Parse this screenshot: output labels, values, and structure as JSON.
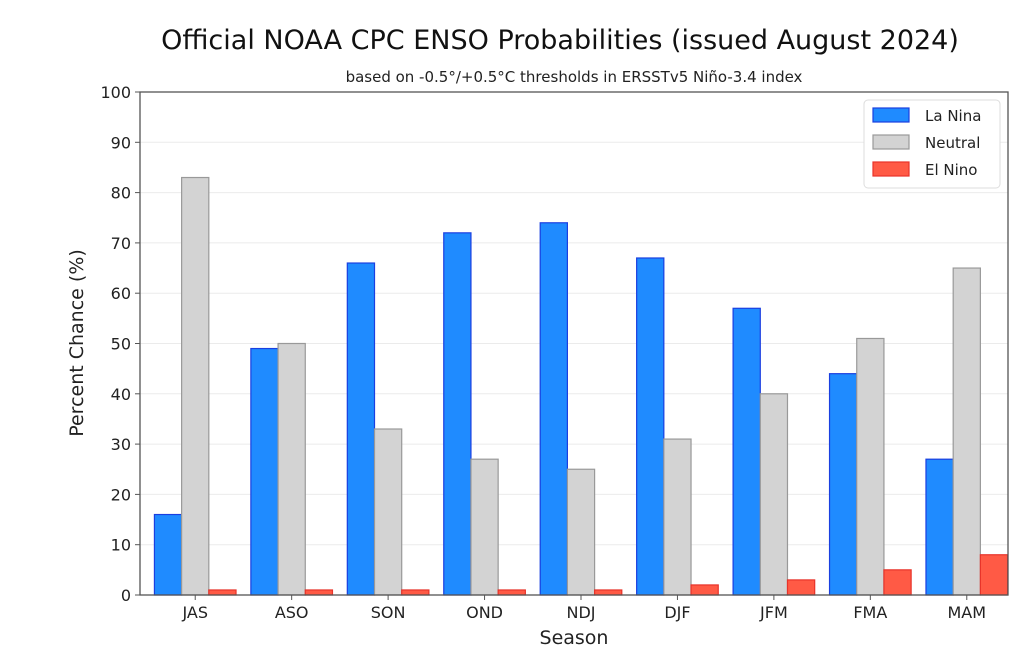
{
  "chart_data": {
    "type": "bar",
    "title": "Official NOAA CPC ENSO Probabilities (issued August 2024)",
    "subtitle": "based on -0.5°/+0.5°C thresholds in ERSSTv5 Niño-3.4 index",
    "xlabel": "Season",
    "ylabel": "Percent Chance (%)",
    "ylim": [
      0,
      100
    ],
    "yticks": [
      0,
      10,
      20,
      30,
      40,
      50,
      60,
      70,
      80,
      90,
      100
    ],
    "grid": true,
    "legend_position": "top-right",
    "categories": [
      "JAS",
      "ASO",
      "SON",
      "OND",
      "NDJ",
      "DJF",
      "JFM",
      "FMA",
      "MAM"
    ],
    "series": [
      {
        "name": "La Nina",
        "color": "#1f8bff",
        "edge": "#1a3fe0",
        "values": [
          16,
          49,
          66,
          72,
          74,
          67,
          57,
          44,
          27
        ]
      },
      {
        "name": "Neutral",
        "color": "#d3d3d3",
        "edge": "#999999",
        "values": [
          83,
          50,
          33,
          27,
          25,
          31,
          40,
          51,
          65
        ]
      },
      {
        "name": "El Nino",
        "color": "#ff5a45",
        "edge": "#e8332a",
        "values": [
          1,
          1,
          1,
          1,
          1,
          2,
          3,
          5,
          8
        ]
      }
    ]
  }
}
